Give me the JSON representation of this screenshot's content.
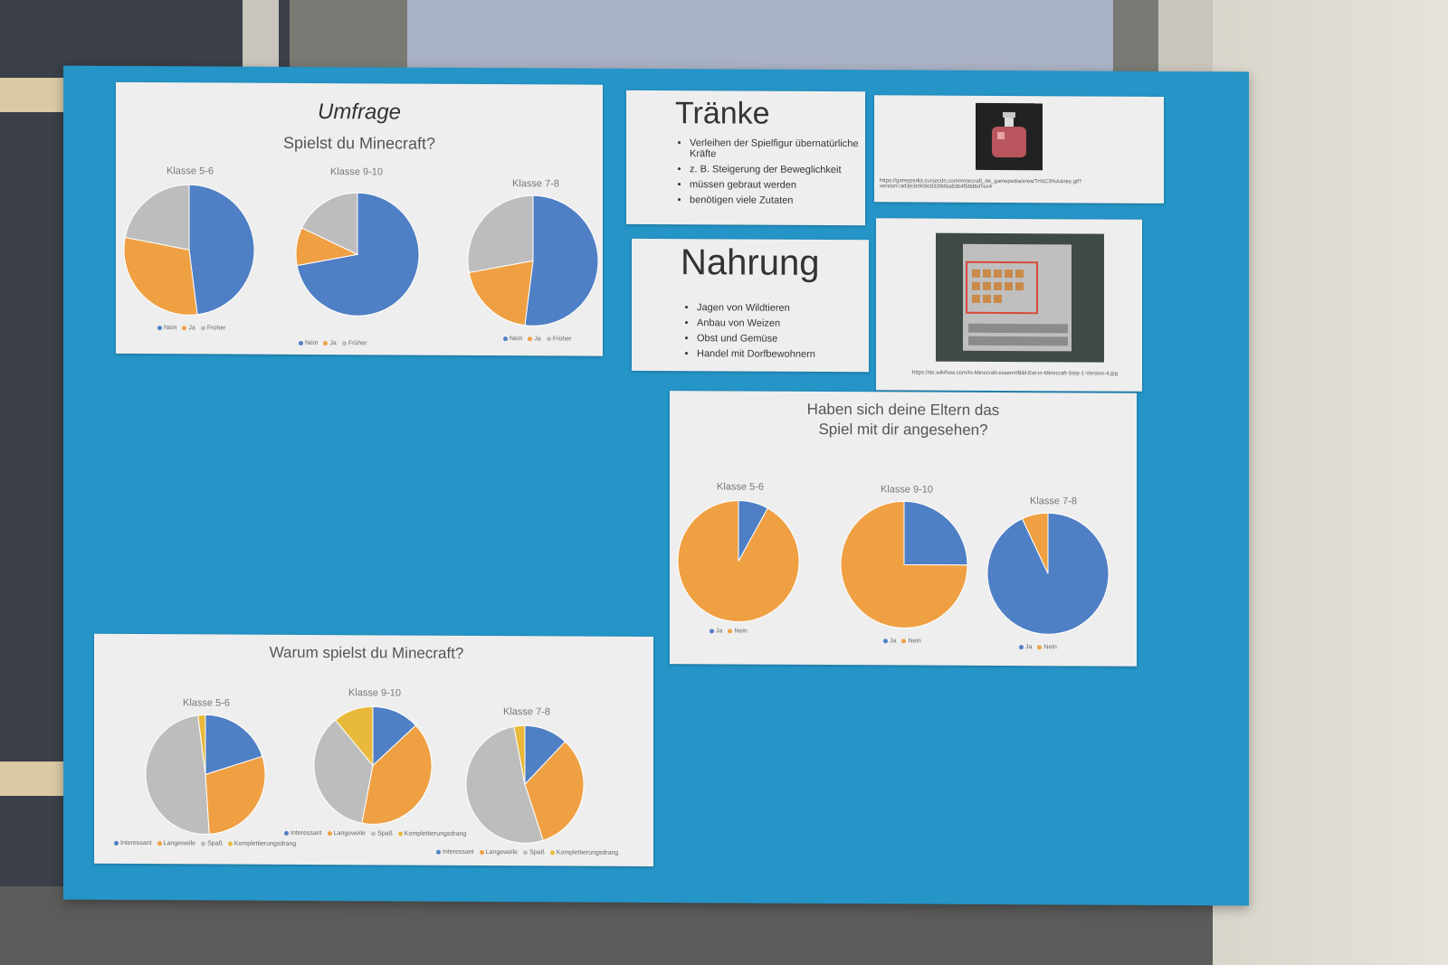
{
  "umfrage": {
    "heading": "Umfrage",
    "question": "Spielst du Minecraft?",
    "legend": [
      "Nein",
      "Ja",
      "Früher"
    ],
    "colors": [
      "#4f7fc4",
      "#eea043",
      "#bdbdbd"
    ],
    "pies": [
      {
        "label": "Klasse 5-6",
        "values": [
          48,
          30,
          22
        ]
      },
      {
        "label": "Klasse 9-10",
        "values": [
          72,
          10,
          18
        ]
      },
      {
        "label": "Klasse 7-8",
        "values": [
          52,
          20,
          28
        ]
      }
    ]
  },
  "traenke": {
    "title": "Tränke",
    "items": [
      "Verleihen der Spielfigur übernatürliche Kräfte",
      "z. B. Steigerung der Beweglichkeit",
      "müssen gebraut werden",
      "benötigen viele Zutaten"
    ],
    "url": "https://gamepedia.cursecdn.com/minecraft_de_gamepedia/e/ea/Tr%C3%A4nke.gif?version=ad3e3e908c8339d6a8364f58d8d7ec4"
  },
  "nahrung": {
    "title": "Nahrung",
    "items": [
      "Jagen von Wildtieren",
      "Anbau von Weizen",
      "Obst und Gemüse",
      "Handel mit Dorfbewohnern"
    ],
    "url": "https://de.wikihow.com/In-Minecraft-essen#/Bild:Eat-in-Minecraft-Step-1-Version-4.jpg"
  },
  "eltern": {
    "question_line1": "Haben sich deine Eltern das",
    "question_line2": "Spiel mit dir angesehen?",
    "legend": [
      "Ja",
      "Nein"
    ],
    "colors": [
      "#4f7fc4",
      "#eea043"
    ],
    "pies": [
      {
        "label": "Klasse 5-6",
        "values": [
          8,
          92
        ]
      },
      {
        "label": "Klasse 9-10",
        "values": [
          25,
          75
        ]
      },
      {
        "label": "Klasse 7-8",
        "values": [
          93,
          7
        ]
      }
    ]
  },
  "warum": {
    "question": "Warum spielst du Minecraft?",
    "legend": [
      "Interessant",
      "Langeweile",
      "Spaß",
      "Komplettierungsdrang"
    ],
    "colors": [
      "#4f7fc4",
      "#eea043",
      "#bdbdbd",
      "#e8b93a"
    ],
    "pies": [
      {
        "label": "Klasse 5-6",
        "values": [
          20,
          29,
          49,
          2
        ]
      },
      {
        "label": "Klasse 9-10",
        "values": [
          13,
          40,
          36,
          11
        ]
      },
      {
        "label": "Klasse 7-8",
        "values": [
          12,
          33,
          52,
          3
        ]
      }
    ]
  }
}
